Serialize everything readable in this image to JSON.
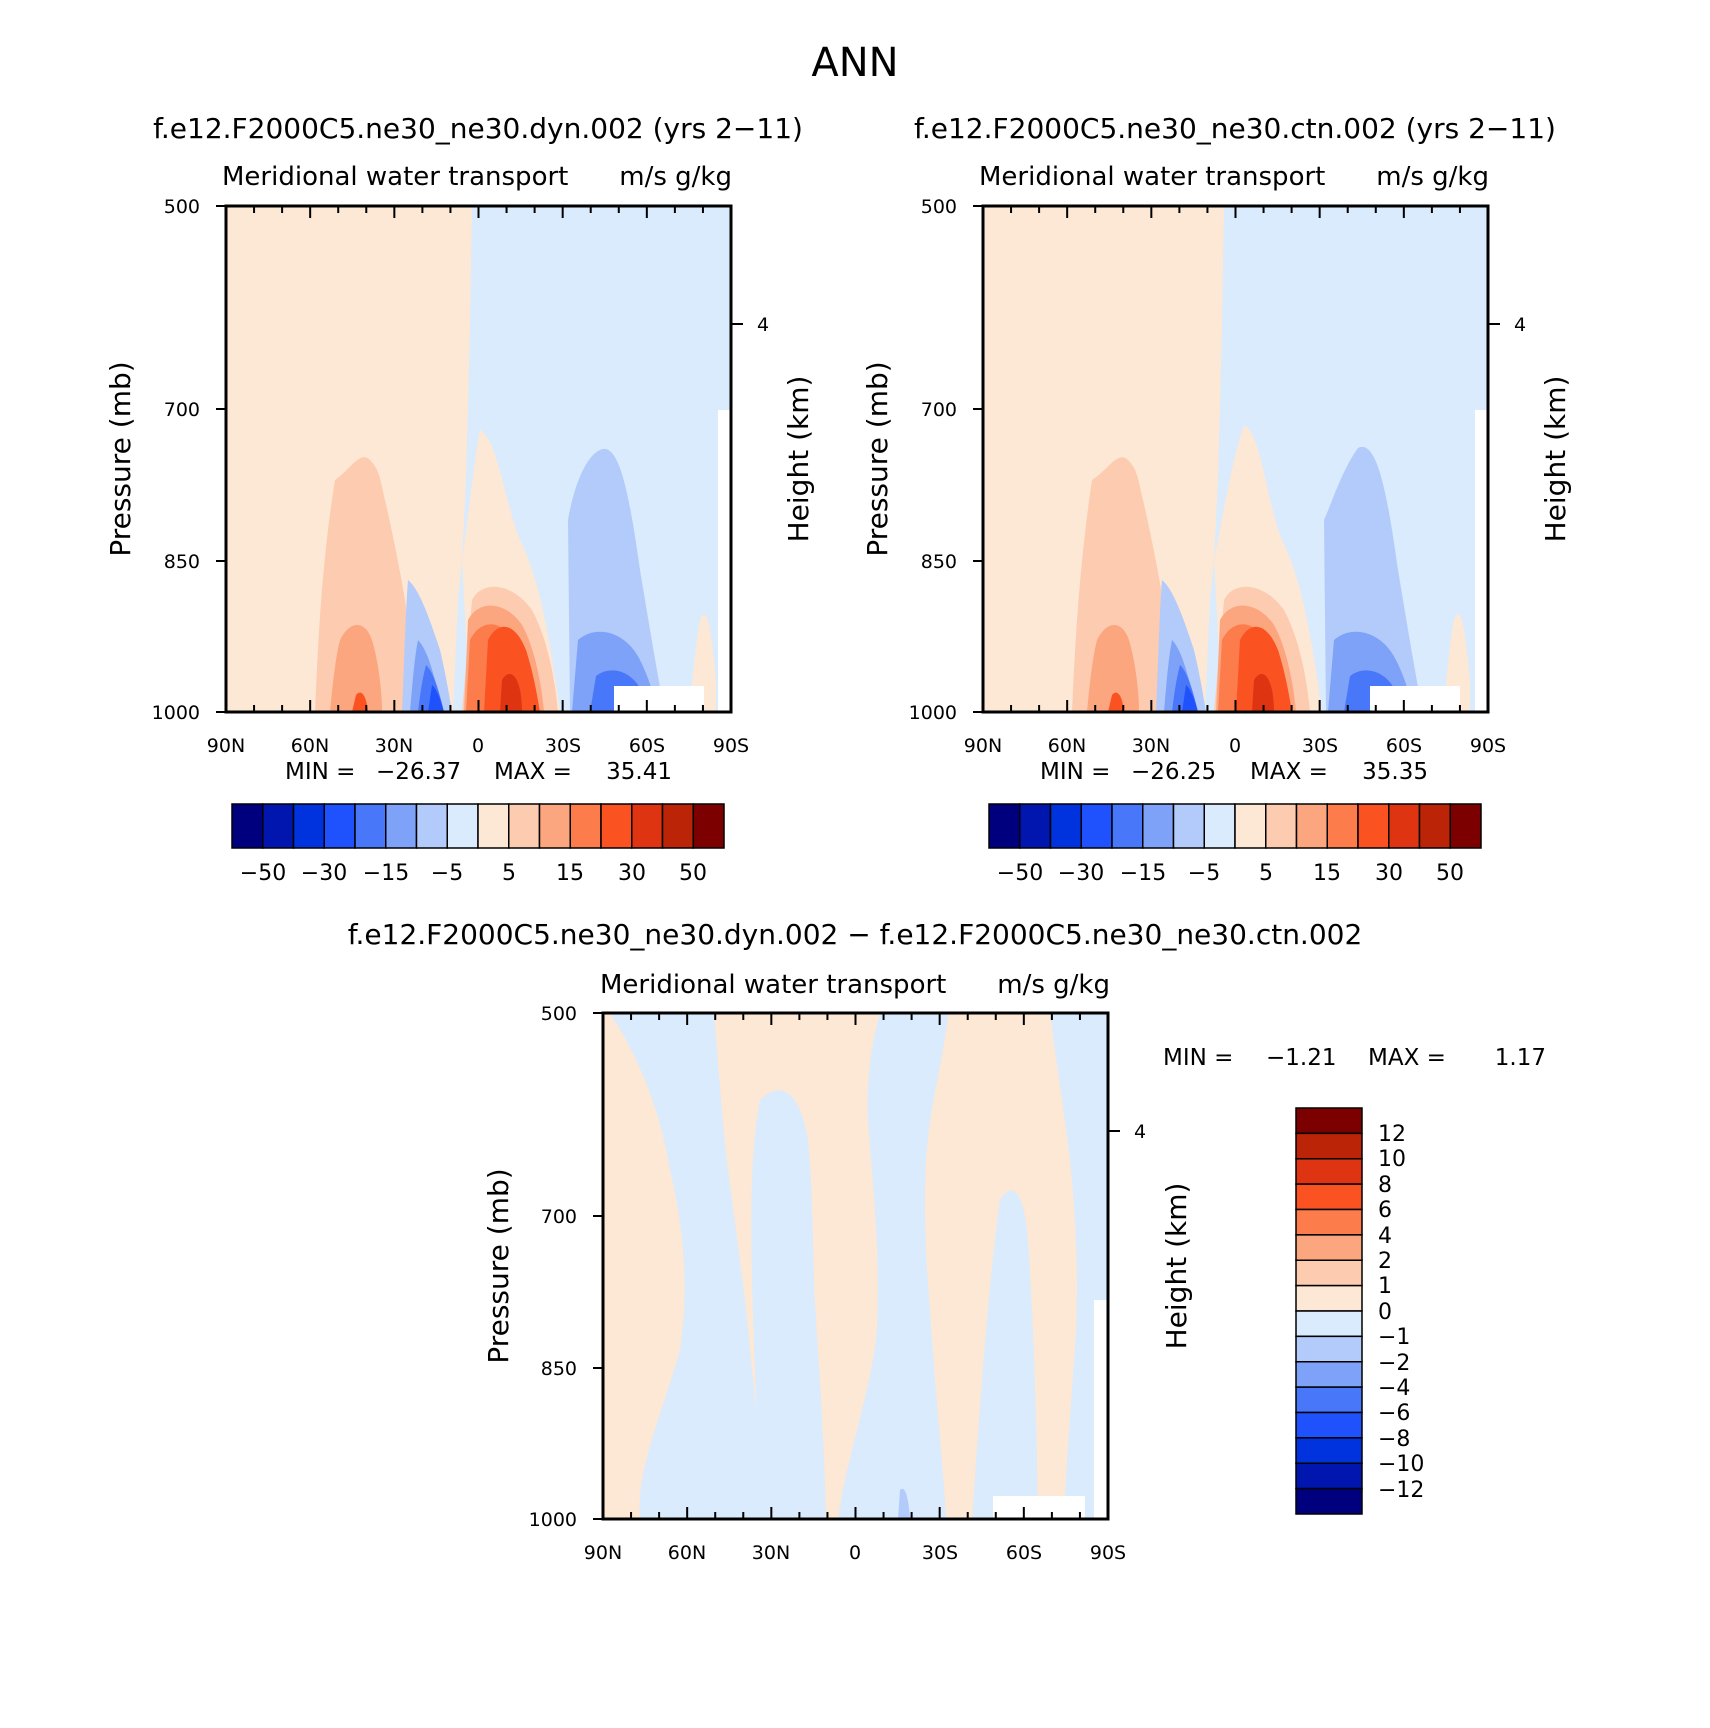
{
  "colors": {
    "scale": [
      "#00007f",
      "#0016ae",
      "#0033dd",
      "#1f51fd",
      "#4977fa",
      "#7fa2f9",
      "#b2cbfb",
      "#d9ebfc",
      "#fde8d5",
      "#fdcbb0",
      "#fca680",
      "#fd7c4c",
      "#fb5222",
      "#df3411",
      "#bc2408",
      "#7d0000"
    ]
  },
  "figure": {
    "title": "ANN"
  },
  "panels": [
    {
      "case": "f.e12.F2000C5.ne30_ne30.dyn.002 (yrs 2−11)",
      "long_name": "Meridional water transport",
      "units": "m/s g/kg",
      "ylabel": "Pressure (mb)",
      "ylabel_right": "Height (km)",
      "yticks": [
        "500",
        "700",
        "850",
        "1000"
      ],
      "right_tick": "4",
      "xticks": [
        "90N",
        "60N",
        "30N",
        "0",
        "30S",
        "60S",
        "90S"
      ],
      "min_label": "MIN =",
      "min_value": "−26.37",
      "max_label": "MAX =",
      "max_value": "35.41",
      "colorbar_labels": [
        "−50",
        "−30",
        "−15",
        "−5",
        "5",
        "15",
        "30",
        "50"
      ]
    },
    {
      "case": "f.e12.F2000C5.ne30_ne30.ctn.002 (yrs 2−11)",
      "long_name": "Meridional water transport",
      "units": "m/s g/kg",
      "ylabel": "Pressure (mb)",
      "ylabel_right": "Height (km)",
      "yticks": [
        "500",
        "700",
        "850",
        "1000"
      ],
      "right_tick": "4",
      "xticks": [
        "90N",
        "60N",
        "30N",
        "0",
        "30S",
        "60S",
        "90S"
      ],
      "min_label": "MIN =",
      "min_value": "−26.25",
      "max_label": "MAX =",
      "max_value": "35.35",
      "colorbar_labels": [
        "−50",
        "−30",
        "−15",
        "−5",
        "5",
        "15",
        "30",
        "50"
      ]
    },
    {
      "case": "f.e12.F2000C5.ne30_ne30.dyn.002 − f.e12.F2000C5.ne30_ne30.ctn.002",
      "long_name": "Meridional water transport",
      "units": "m/s g/kg",
      "ylabel": "Pressure (mb)",
      "ylabel_right": "Height (km)",
      "yticks": [
        "500",
        "700",
        "850",
        "1000"
      ],
      "right_tick": "4",
      "xticks": [
        "90N",
        "60N",
        "30N",
        "0",
        "30S",
        "60S",
        "90S"
      ],
      "min_label": "MIN =",
      "min_value": "−1.21",
      "max_label": "MAX =",
      "max_value": "1.17",
      "colorbar_labels": [
        "12",
        "10",
        "8",
        "6",
        "4",
        "2",
        "1",
        "0",
        "−1",
        "−2",
        "−4",
        "−6",
        "−8",
        "−10",
        "−12"
      ]
    }
  ],
  "chart_data": [
    {
      "type": "heatmap",
      "title": "f.e12.F2000C5.ne30_ne30.dyn.002 (yrs 2−11)",
      "subtitle": "Meridional water transport",
      "units": "m/s g/kg",
      "xlabel": "",
      "ylabel": "Pressure (mb)",
      "ylabel_right": "Height (km)",
      "x_ticks": [
        "90N",
        "60N",
        "30N",
        "0",
        "30S",
        "60S",
        "90S"
      ],
      "y_ticks": [
        500,
        700,
        850,
        1000
      ],
      "y_scale": "log-pressure",
      "ylim": [
        1000,
        500
      ],
      "contour_levels": [
        -50,
        -40,
        -30,
        -20,
        -15,
        -10,
        -5,
        0,
        5,
        10,
        15,
        20,
        30,
        40,
        50
      ],
      "min": -26.37,
      "max": 35.41,
      "features": [
        {
          "lat": 38,
          "pressure": 1000,
          "value": 20
        },
        {
          "lat": 8,
          "pressure": 1000,
          "value": -25
        },
        {
          "lat": -8,
          "pressure": 990,
          "value": 35
        },
        {
          "lat": -55,
          "pressure": 960,
          "value": -12
        }
      ]
    },
    {
      "type": "heatmap",
      "title": "f.e12.F2000C5.ne30_ne30.ctn.002 (yrs 2−11)",
      "subtitle": "Meridional water transport",
      "units": "m/s g/kg",
      "xlabel": "",
      "ylabel": "Pressure (mb)",
      "ylabel_right": "Height (km)",
      "x_ticks": [
        "90N",
        "60N",
        "30N",
        "0",
        "30S",
        "60S",
        "90S"
      ],
      "y_ticks": [
        500,
        700,
        850,
        1000
      ],
      "y_scale": "log-pressure",
      "ylim": [
        1000,
        500
      ],
      "contour_levels": [
        -50,
        -40,
        -30,
        -20,
        -15,
        -10,
        -5,
        0,
        5,
        10,
        15,
        20,
        30,
        40,
        50
      ],
      "min": -26.25,
      "max": 35.35,
      "features": [
        {
          "lat": 38,
          "pressure": 1000,
          "value": 20
        },
        {
          "lat": 8,
          "pressure": 1000,
          "value": -25
        },
        {
          "lat": -8,
          "pressure": 990,
          "value": 35
        },
        {
          "lat": -55,
          "pressure": 960,
          "value": -12
        }
      ]
    },
    {
      "type": "heatmap",
      "title": "f.e12.F2000C5.ne30_ne30.dyn.002 − f.e12.F2000C5.ne30_ne30.ctn.002",
      "subtitle": "Meridional water transport",
      "units": "m/s g/kg",
      "xlabel": "",
      "ylabel": "Pressure (mb)",
      "ylabel_right": "Height (km)",
      "x_ticks": [
        "90N",
        "60N",
        "30N",
        "0",
        "30S",
        "60S",
        "90S"
      ],
      "y_ticks": [
        500,
        700,
        850,
        1000
      ],
      "y_scale": "log-pressure",
      "ylim": [
        1000,
        500
      ],
      "contour_levels": [
        -12,
        -10,
        -8,
        -6,
        -4,
        -2,
        -1,
        0,
        1,
        2,
        4,
        6,
        8,
        10,
        12
      ],
      "min": -1.21,
      "max": 1.17
    }
  ]
}
